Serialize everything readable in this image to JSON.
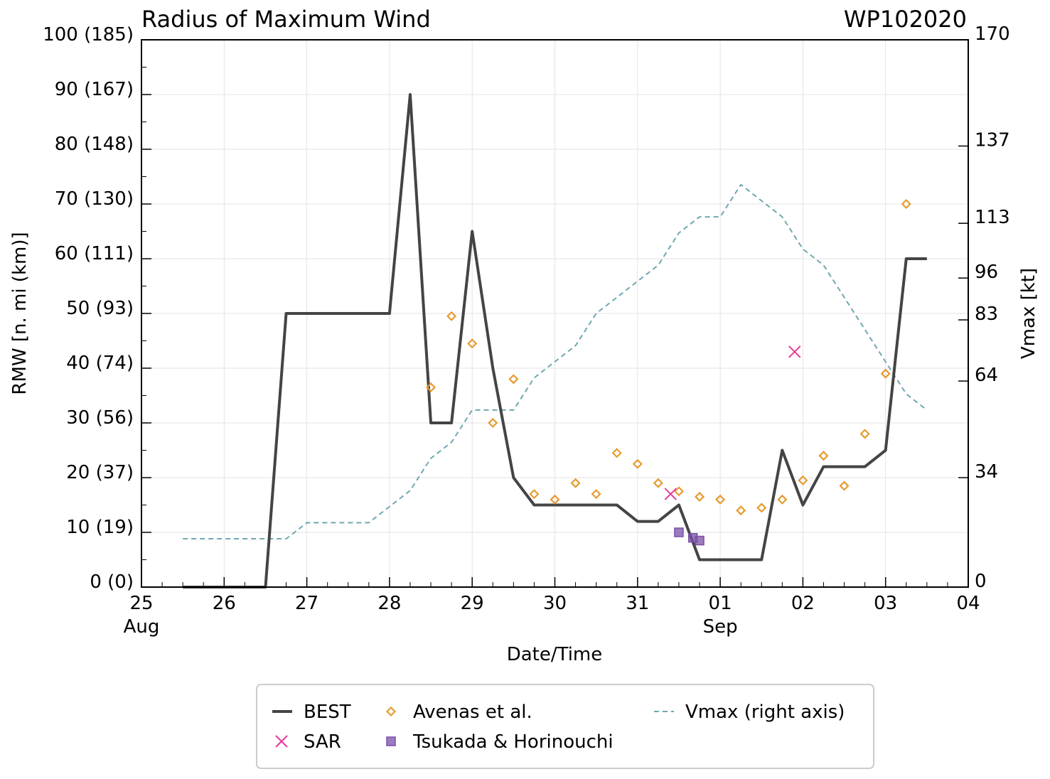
{
  "chart_data": {
    "type": "line",
    "title": "Radius of Maximum Wind",
    "storm_id": "WP102020",
    "xlabel": "Date/Time",
    "ylabel": "RMW [n. mi (km)]",
    "y2label": "Vmax [kt]",
    "xlim": [
      0,
      10
    ],
    "ylim": [
      0,
      100
    ],
    "y2lim": [
      0,
      170
    ],
    "grid": true,
    "legend_position": "bottom",
    "x_ticks": [
      {
        "x": 0,
        "label": "25",
        "sub": "Aug"
      },
      {
        "x": 1,
        "label": "26",
        "sub": ""
      },
      {
        "x": 2,
        "label": "27",
        "sub": ""
      },
      {
        "x": 3,
        "label": "28",
        "sub": ""
      },
      {
        "x": 4,
        "label": "29",
        "sub": ""
      },
      {
        "x": 5,
        "label": "30",
        "sub": ""
      },
      {
        "x": 6,
        "label": "31",
        "sub": ""
      },
      {
        "x": 7,
        "label": "01",
        "sub": "Sep"
      },
      {
        "x": 8,
        "label": "02",
        "sub": ""
      },
      {
        "x": 9,
        "label": "03",
        "sub": ""
      },
      {
        "x": 10,
        "label": "04",
        "sub": ""
      }
    ],
    "y_ticks": [
      {
        "y": 0,
        "label": "0 (0)"
      },
      {
        "y": 10,
        "label": "10 (19)"
      },
      {
        "y": 20,
        "label": "20 (37)"
      },
      {
        "y": 30,
        "label": "30 (56)"
      },
      {
        "y": 40,
        "label": "40 (74)"
      },
      {
        "y": 50,
        "label": "50 (93)"
      },
      {
        "y": 60,
        "label": "60 (111)"
      },
      {
        "y": 70,
        "label": "70 (130)"
      },
      {
        "y": 80,
        "label": "80 (148)"
      },
      {
        "y": 90,
        "label": "90 (167)"
      },
      {
        "y": 100,
        "label": "100 (185)"
      }
    ],
    "y2_ticks": [
      {
        "v": 0,
        "label": "0"
      },
      {
        "v": 34,
        "label": "34"
      },
      {
        "v": 64,
        "label": "64"
      },
      {
        "v": 83,
        "label": "83"
      },
      {
        "v": 96,
        "label": "96"
      },
      {
        "v": 113,
        "label": "113"
      },
      {
        "v": 137,
        "label": "137"
      },
      {
        "v": 170,
        "label": "170"
      }
    ],
    "series": [
      {
        "name": "BEST",
        "kind": "line",
        "color": "#444444",
        "x": [
          0.5,
          1.5,
          1.75,
          2.0,
          2.25,
          2.5,
          2.75,
          3.0,
          3.25,
          3.5,
          3.75,
          4.0,
          4.25,
          4.5,
          4.75,
          5.0,
          5.25,
          5.5,
          5.75,
          6.0,
          6.25,
          6.5,
          6.75,
          7.0,
          7.25,
          7.5,
          7.75,
          8.0,
          8.25,
          8.5,
          8.75,
          9.0,
          9.25,
          9.5
        ],
        "y": [
          0,
          0,
          50,
          50,
          50,
          50,
          50,
          50,
          90,
          30,
          30,
          65,
          40,
          20,
          15,
          15,
          15,
          15,
          15,
          12,
          12,
          15,
          5,
          5,
          5,
          5,
          25,
          15,
          22,
          22,
          22,
          25,
          60,
          60
        ]
      },
      {
        "name": "Avenas et al.",
        "kind": "diamond",
        "color": "#e69b2f",
        "x": [
          3.5,
          3.75,
          4.0,
          4.25,
          4.5,
          4.75,
          5.0,
          5.25,
          5.5,
          5.75,
          6.0,
          6.25,
          6.5,
          6.75,
          7.0,
          7.25,
          7.5,
          7.75,
          8.0,
          8.25,
          8.5,
          8.75,
          9.0,
          9.25
        ],
        "y": [
          36.5,
          49.5,
          44.5,
          30,
          38,
          17,
          16,
          19,
          17,
          24.5,
          22.5,
          19,
          17.5,
          16.5,
          16,
          14,
          14.5,
          16,
          19.5,
          24,
          18.5,
          28,
          39,
          70
        ]
      },
      {
        "name": "SAR",
        "kind": "x",
        "color": "#e8399b",
        "x": [
          6.4,
          7.9
        ],
        "y": [
          17,
          43
        ]
      },
      {
        "name": "Tsukada & Horinouchi",
        "kind": "square",
        "color": "#7b4fa8",
        "x": [
          6.5,
          6.67,
          6.75
        ],
        "y": [
          10,
          9,
          8.5
        ]
      },
      {
        "name": "Vmax (right axis)",
        "kind": "dashed",
        "color": "#6fa8b0",
        "axis": "right",
        "x": [
          0.5,
          1.5,
          1.75,
          2.0,
          2.25,
          2.5,
          2.75,
          3.0,
          3.25,
          3.5,
          3.75,
          4.0,
          4.25,
          4.5,
          4.75,
          5.0,
          5.25,
          5.5,
          5.75,
          6.0,
          6.25,
          6.5,
          6.75,
          7.0,
          7.25,
          7.5,
          7.75,
          8.0,
          8.25,
          8.5,
          8.75,
          9.0,
          9.25,
          9.5
        ],
        "y": [
          15,
          15,
          15,
          20,
          20,
          20,
          20,
          25,
          30,
          40,
          45,
          55,
          55,
          55,
          65,
          70,
          75,
          85,
          90,
          95,
          100,
          110,
          115,
          115,
          125,
          120,
          115,
          105,
          100,
          90,
          80,
          70,
          60,
          55
        ]
      }
    ]
  },
  "legend": {
    "items": [
      {
        "label": "BEST",
        "kind": "line",
        "color": "#444444"
      },
      {
        "label": "SAR",
        "kind": "x",
        "color": "#e8399b"
      },
      {
        "label": "Avenas et al.",
        "kind": "diamond",
        "color": "#e69b2f"
      },
      {
        "label": "Tsukada & Horinouchi",
        "kind": "square",
        "color": "#7b4fa8"
      },
      {
        "label": "Vmax (right axis)",
        "kind": "dashed",
        "color": "#6fa8b0"
      }
    ]
  }
}
